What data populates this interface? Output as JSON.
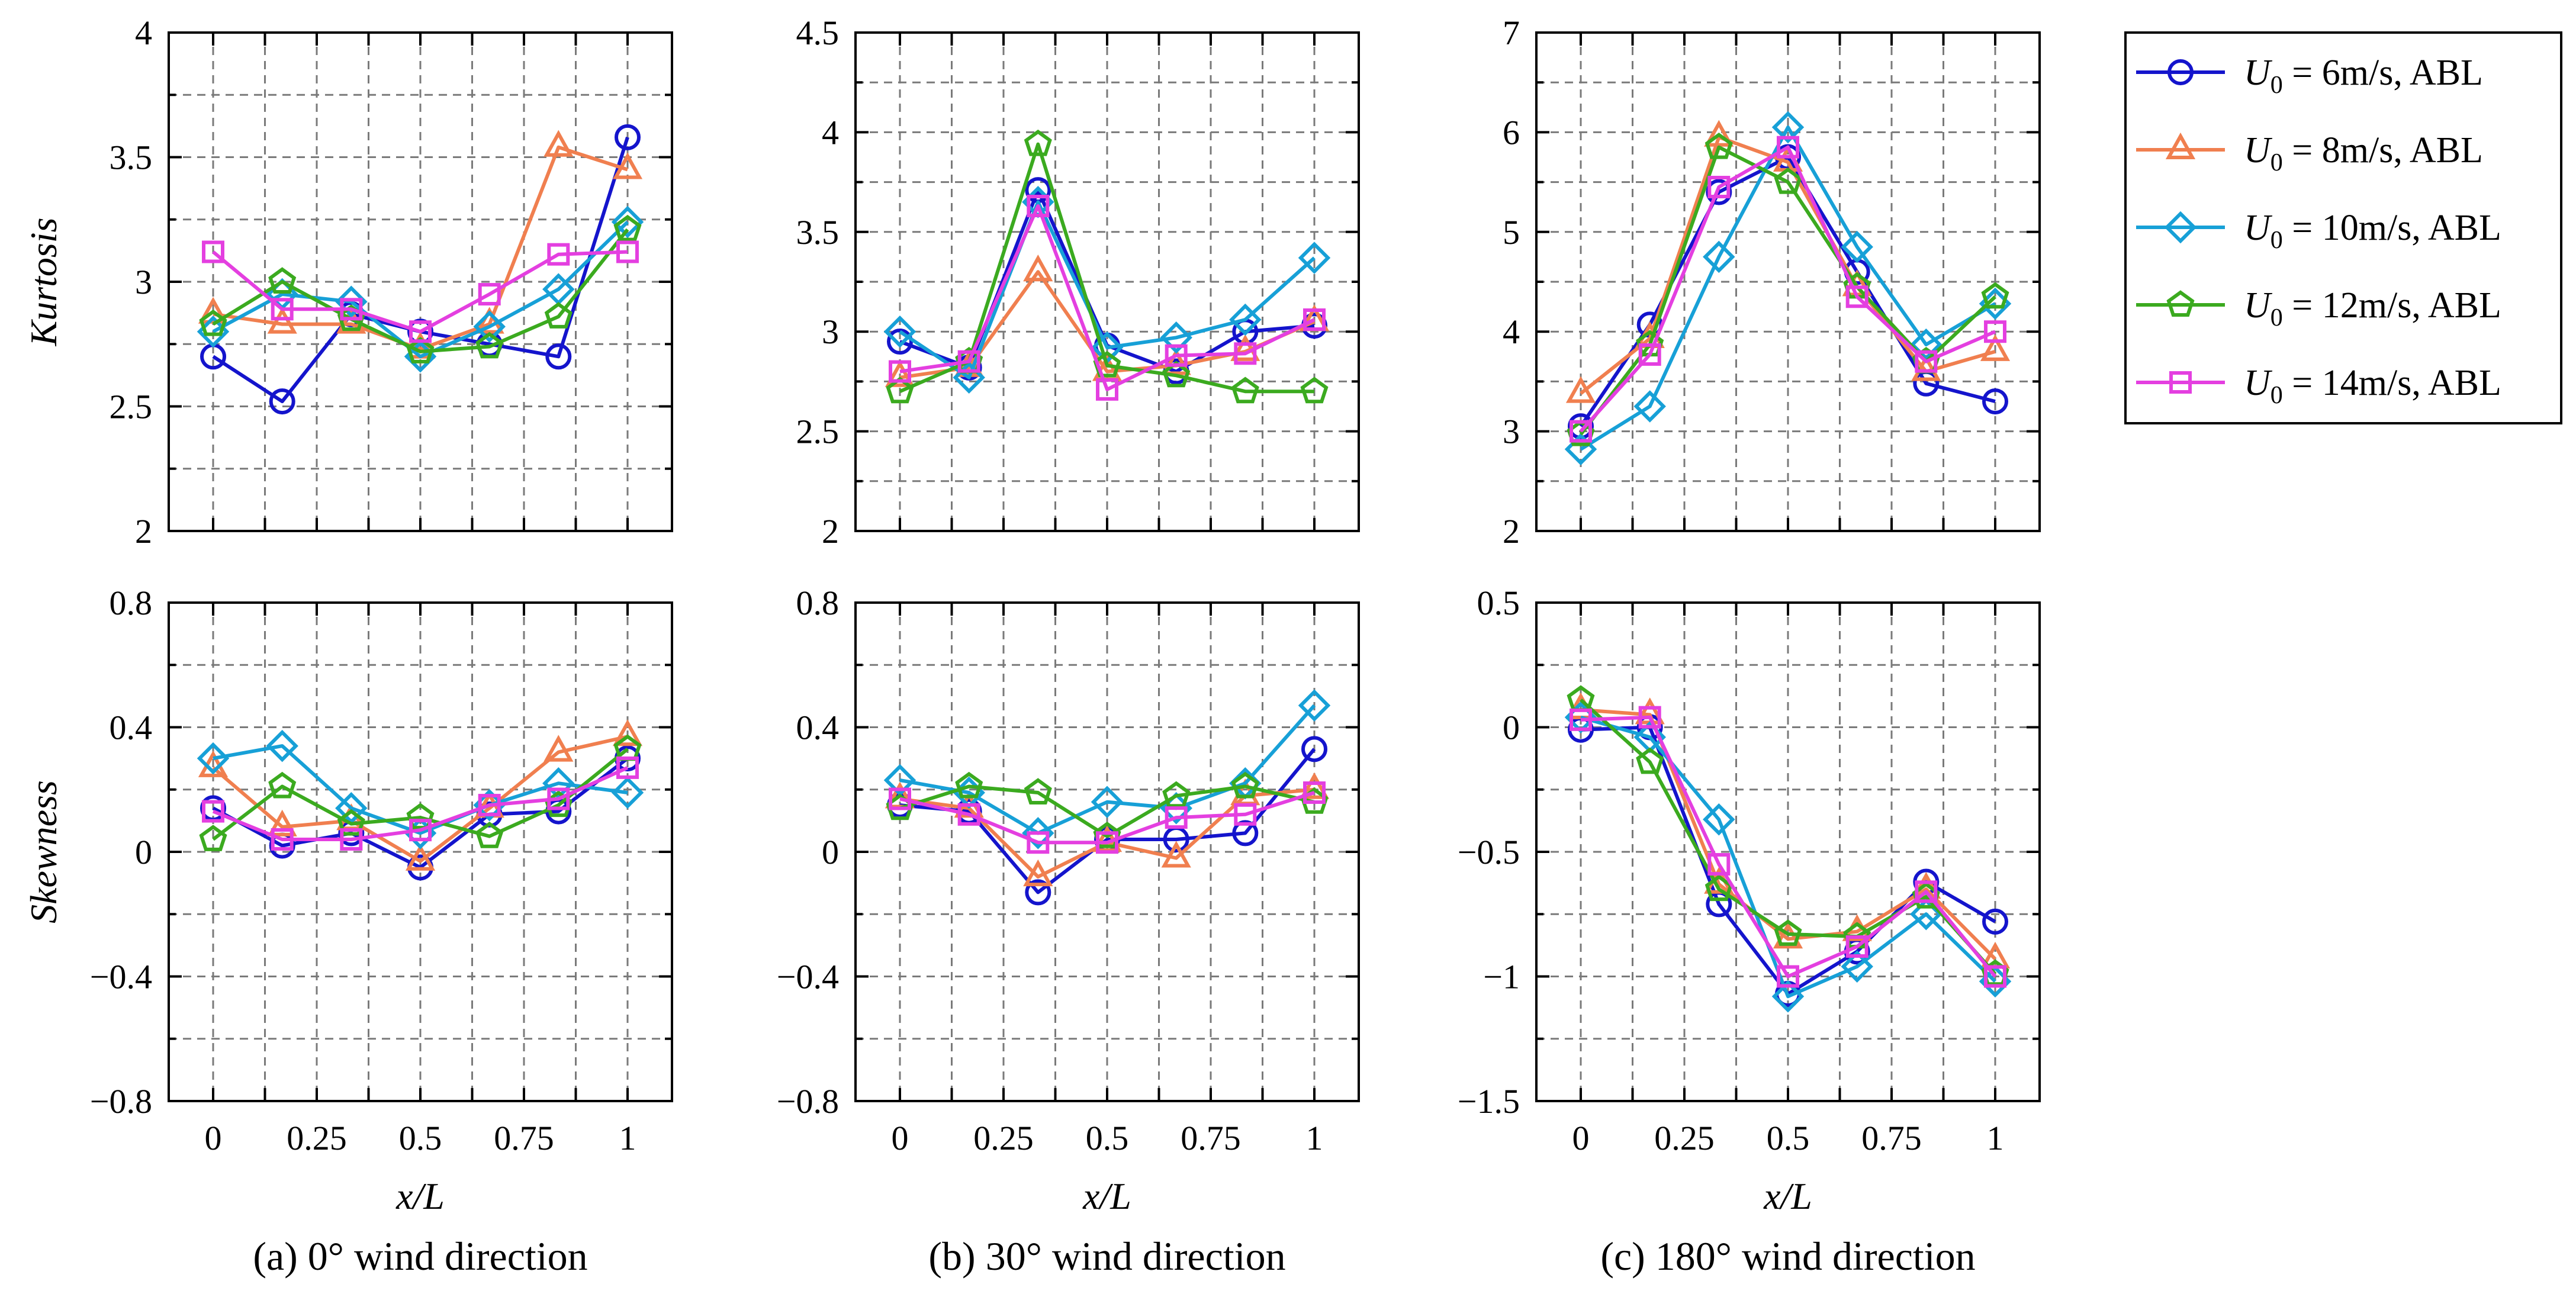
{
  "chart_data": {
    "type": "line",
    "x_positions": [
      0,
      0.1667,
      0.3333,
      0.5,
      0.6667,
      0.8333,
      1.0
    ],
    "legend": {
      "placement": "right",
      "entries": [
        {
          "label": "6m/s, ABL",
          "symbol": "U",
          "subscript": "0",
          "eq": "=",
          "color": "#1414CC",
          "marker": "circle"
        },
        {
          "label": "8m/s, ABL",
          "symbol": "U",
          "subscript": "0",
          "eq": "=",
          "color": "#F07F4F",
          "marker": "triangle"
        },
        {
          "label": "10m/s, ABL",
          "symbol": "U",
          "subscript": "0",
          "eq": "=",
          "color": "#17A0D7",
          "marker": "diamond"
        },
        {
          "label": "12m/s, ABL",
          "symbol": "U",
          "subscript": "0",
          "eq": "=",
          "color": "#3BAA1F",
          "marker": "pentagon"
        },
        {
          "label": "14m/s, ABL",
          "symbol": "U",
          "subscript": "0",
          "eq": "=",
          "color": "#E43FE0",
          "marker": "square"
        }
      ]
    },
    "panels": [
      {
        "id": "a-kurtosis",
        "col": 0,
        "row": 0,
        "ylabel": "Kurtosis",
        "xlabel": "",
        "ylim": [
          2,
          4
        ],
        "yticks": [
          "2",
          "2.5",
          "3",
          "3.5",
          "4"
        ],
        "ytick_values": [
          2,
          2.5,
          3,
          3.5,
          4
        ],
        "xticks": [],
        "xtick_values": [
          0,
          0.25,
          0.5,
          0.75,
          1
        ],
        "series": [
          {
            "name": "6m/s",
            "values": [
              2.7,
              2.52,
              2.87,
              2.8,
              2.75,
              2.7,
              3.58
            ]
          },
          {
            "name": "8m/s",
            "values": [
              2.87,
              2.83,
              2.83,
              2.73,
              2.83,
              3.54,
              3.45
            ]
          },
          {
            "name": "10m/s",
            "values": [
              2.8,
              2.95,
              2.92,
              2.7,
              2.82,
              2.97,
              3.24
            ]
          },
          {
            "name": "12m/s",
            "values": [
              2.83,
              3.0,
              2.85,
              2.72,
              2.74,
              2.86,
              3.21
            ]
          },
          {
            "name": "14m/s",
            "values": [
              3.12,
              2.89,
              2.89,
              2.8,
              2.95,
              3.11,
              3.12
            ]
          }
        ]
      },
      {
        "id": "b-kurtosis",
        "col": 1,
        "row": 0,
        "ylabel": "",
        "xlabel": "",
        "ylim": [
          2,
          4.5
        ],
        "yticks": [
          "2",
          "2.5",
          "3",
          "3.5",
          "4",
          "4.5"
        ],
        "ytick_values": [
          2,
          2.5,
          3,
          3.5,
          4,
          4.5
        ],
        "xticks": [],
        "xtick_values": [
          0,
          0.25,
          0.5,
          0.75,
          1
        ],
        "series": [
          {
            "name": "6m/s",
            "values": [
              2.95,
              2.82,
              3.71,
              2.93,
              2.8,
              3.0,
              3.03
            ]
          },
          {
            "name": "8m/s",
            "values": [
              2.77,
              2.82,
              3.3,
              2.8,
              2.83,
              2.9,
              3.05
            ]
          },
          {
            "name": "10m/s",
            "values": [
              3.0,
              2.77,
              3.65,
              2.92,
              2.97,
              3.06,
              3.37
            ]
          },
          {
            "name": "12m/s",
            "values": [
              2.7,
              2.85,
              3.94,
              2.83,
              2.78,
              2.7,
              2.7
            ]
          },
          {
            "name": "14m/s",
            "values": [
              2.8,
              2.85,
              3.63,
              2.71,
              2.88,
              2.89,
              3.06
            ]
          }
        ]
      },
      {
        "id": "c-kurtosis",
        "col": 2,
        "row": 0,
        "ylabel": "",
        "xlabel": "",
        "ylim": [
          2,
          7
        ],
        "yticks": [
          "2",
          "3",
          "4",
          "5",
          "6",
          "7"
        ],
        "ytick_values": [
          2,
          3,
          4,
          5,
          6,
          7
        ],
        "xticks": [],
        "xtick_values": [
          0,
          0.25,
          0.5,
          0.75,
          1
        ],
        "series": [
          {
            "name": "6m/s",
            "values": [
              3.05,
              4.07,
              5.4,
              5.75,
              4.6,
              3.48,
              3.3
            ]
          },
          {
            "name": "8m/s",
            "values": [
              3.38,
              3.93,
              5.95,
              5.7,
              4.45,
              3.6,
              3.8
            ]
          },
          {
            "name": "10m/s",
            "values": [
              2.82,
              3.25,
              4.75,
              6.05,
              4.85,
              3.87,
              4.28
            ]
          },
          {
            "name": "12m/s",
            "values": [
              2.97,
              3.87,
              5.85,
              5.5,
              4.45,
              3.7,
              4.35
            ]
          },
          {
            "name": "14m/s",
            "values": [
              3.0,
              3.77,
              5.45,
              5.85,
              4.35,
              3.7,
              4.0
            ]
          }
        ]
      },
      {
        "id": "a-skewness",
        "col": 0,
        "row": 1,
        "ylabel": "Skewness",
        "xlabel": "x/L",
        "ylim": [
          -0.8,
          0.8
        ],
        "yticks": [
          "−0.8",
          "−0.4",
          "0",
          "0.4",
          "0.8"
        ],
        "ytick_values": [
          -0.8,
          -0.4,
          0,
          0.4,
          0.8
        ],
        "xticks": [
          "0",
          "0.25",
          "0.5",
          "0.75",
          "1"
        ],
        "xtick_values": [
          0,
          0.25,
          0.5,
          0.75,
          1
        ],
        "caption": "(a) 0° wind direction",
        "series": [
          {
            "name": "6m/s",
            "values": [
              0.14,
              0.02,
              0.06,
              -0.05,
              0.12,
              0.13,
              0.3
            ]
          },
          {
            "name": "8m/s",
            "values": [
              0.27,
              0.08,
              0.1,
              -0.03,
              0.14,
              0.32,
              0.37
            ]
          },
          {
            "name": "10m/s",
            "values": [
              0.3,
              0.34,
              0.14,
              0.06,
              0.15,
              0.22,
              0.19
            ]
          },
          {
            "name": "12m/s",
            "values": [
              0.04,
              0.21,
              0.09,
              0.11,
              0.05,
              0.15,
              0.33
            ]
          },
          {
            "name": "14m/s",
            "values": [
              0.13,
              0.04,
              0.04,
              0.07,
              0.15,
              0.17,
              0.27
            ]
          }
        ]
      },
      {
        "id": "b-skewness",
        "col": 1,
        "row": 1,
        "ylabel": "",
        "xlabel": "x/L",
        "ylim": [
          -0.8,
          0.8
        ],
        "yticks": [
          "−0.8",
          "−0.4",
          "0",
          "0.4",
          "0.8"
        ],
        "ytick_values": [
          -0.8,
          -0.4,
          0,
          0.4,
          0.8
        ],
        "xticks": [
          "0",
          "0.25",
          "0.5",
          "0.75",
          "1"
        ],
        "xtick_values": [
          0,
          0.25,
          0.5,
          0.75,
          1
        ],
        "caption": "(b) 30° wind direction",
        "series": [
          {
            "name": "6m/s",
            "values": [
              0.15,
              0.13,
              -0.13,
              0.04,
              0.04,
              0.06,
              0.33
            ]
          },
          {
            "name": "8m/s",
            "values": [
              0.17,
              0.14,
              -0.08,
              0.03,
              -0.02,
              0.18,
              0.2
            ]
          },
          {
            "name": "10m/s",
            "values": [
              0.23,
              0.19,
              0.06,
              0.16,
              0.14,
              0.22,
              0.47
            ]
          },
          {
            "name": "12m/s",
            "values": [
              0.14,
              0.21,
              0.19,
              0.05,
              0.18,
              0.21,
              0.16
            ]
          },
          {
            "name": "14m/s",
            "values": [
              0.17,
              0.12,
              0.03,
              0.03,
              0.11,
              0.12,
              0.19
            ]
          }
        ]
      },
      {
        "id": "c-skewness",
        "col": 2,
        "row": 1,
        "ylabel": "",
        "xlabel": "x/L",
        "ylim": [
          -1.5,
          0.5
        ],
        "yticks": [
          "−1.5",
          "−1",
          "−0.5",
          "0",
          "0.5"
        ],
        "ytick_values": [
          -1.5,
          -1,
          -0.5,
          0,
          0.5
        ],
        "xticks": [
          "0",
          "0.25",
          "0.5",
          "0.75",
          "1"
        ],
        "xtick_values": [
          0,
          0.25,
          0.5,
          0.75,
          1
        ],
        "caption": "(c) 180° wind direction",
        "series": [
          {
            "name": "6m/s",
            "values": [
              -0.01,
              0.0,
              -0.71,
              -1.07,
              -0.9,
              -0.62,
              -0.78
            ]
          },
          {
            "name": "8m/s",
            "values": [
              0.07,
              0.05,
              -0.63,
              -0.85,
              -0.82,
              -0.65,
              -0.93
            ]
          },
          {
            "name": "10m/s",
            "values": [
              0.04,
              -0.04,
              -0.37,
              -1.08,
              -0.96,
              -0.75,
              -1.02
            ]
          },
          {
            "name": "12m/s",
            "values": [
              0.11,
              -0.14,
              -0.65,
              -0.83,
              -0.84,
              -0.68,
              -0.99
            ]
          },
          {
            "name": "14m/s",
            "values": [
              0.03,
              0.04,
              -0.55,
              -1.0,
              -0.88,
              -0.66,
              -1.0
            ]
          }
        ]
      }
    ]
  }
}
